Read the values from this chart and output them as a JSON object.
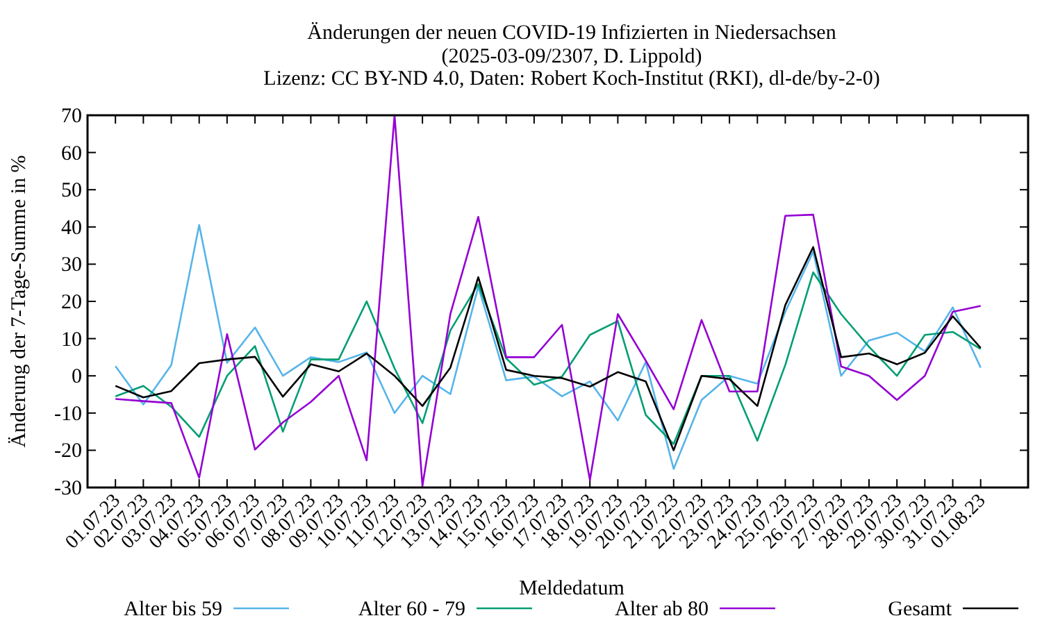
{
  "chart_data": {
    "type": "line",
    "title": "Änderungen der neuen COVID-19 Infizierten in Niedersachsen",
    "subtitle": "(2025-03-09/2307, D. Lippold)\nLizenz: CC BY-ND 4.0, Daten: Robert Koch-Institut (RKI), dl-de/by-2-0)",
    "xlabel": "Meldedatum",
    "ylabel": "Änderung der 7-Tage-Summe in %",
    "categories": [
      "01.07.23",
      "02.07.23",
      "03.07.23",
      "04.07.23",
      "05.07.23",
      "06.07.23",
      "07.07.23",
      "08.07.23",
      "09.07.23",
      "10.07.23",
      "11.07.23",
      "12.07.23",
      "13.07.23",
      "14.07.23",
      "15.07.23",
      "16.07.23",
      "17.07.23",
      "18.07.23",
      "19.07.23",
      "20.07.23",
      "21.07.23",
      "22.07.23",
      "23.07.23",
      "24.07.23",
      "25.07.23",
      "26.07.23",
      "27.07.23",
      "28.07.23",
      "29.07.23",
      "30.07.23",
      "31.07.23",
      "01.08.23"
    ],
    "series": [
      {
        "name": "Alter bis 59",
        "color": "#56b4e9",
        "values": [
          2.6,
          -7.7,
          2.9,
          40.5,
          3.5,
          13,
          0,
          5,
          3.7,
          6.3,
          -10,
          0,
          -4.9,
          24,
          -1.2,
          -0.2,
          -5.5,
          -1.5,
          -12,
          3.7,
          -25,
          -6.5,
          0,
          -2.1,
          17.2,
          33.4,
          0,
          9.5,
          11.6,
          6.6,
          18.4,
          2.2
        ]
      },
      {
        "name": "Alter 60 - 79",
        "color": "#009e73",
        "values": [
          -5.5,
          -2.7,
          -8.3,
          -16.4,
          0,
          8,
          -15,
          4.4,
          4.4,
          20,
          2,
          -12.7,
          12.2,
          24.7,
          4.7,
          -2.4,
          -0.2,
          11,
          14.7,
          -10.5,
          -18.3,
          0,
          0,
          -17.4,
          2.9,
          27.8,
          16.6,
          7.8,
          0,
          11,
          11.8,
          7.2
        ]
      },
      {
        "name": "Alter ab 80",
        "color": "#9400d3",
        "values": [
          -6.2,
          -6.8,
          -7.3,
          -27.4,
          11.2,
          -19.8,
          -12.5,
          -7,
          0,
          -22.7,
          70,
          -29.5,
          16.6,
          42.7,
          5,
          5,
          13.7,
          -28,
          16.6,
          4.1,
          -9,
          15,
          -4.2,
          -4.2,
          43,
          43.3,
          2.5,
          0,
          -6.5,
          0,
          17.2,
          18.8
        ]
      },
      {
        "name": "Gesamt",
        "color": "#000000",
        "values": [
          -2.7,
          -5.8,
          -4.1,
          3.4,
          4.4,
          5.1,
          -5.6,
          3.1,
          1.2,
          6,
          0,
          -8.1,
          2.2,
          26.5,
          1.6,
          0,
          -0.6,
          -2.9,
          1,
          -1.5,
          -20,
          0,
          -0.9,
          -8.1,
          19,
          34.6,
          5,
          6,
          3.1,
          6.2,
          16,
          7.5
        ]
      }
    ],
    "ylim": [
      -30,
      70
    ],
    "yticks": [
      -30,
      -20,
      -10,
      0,
      10,
      20,
      30,
      40,
      50,
      60,
      70
    ],
    "legend": "bottom",
    "marker": "none",
    "line_style": "solid"
  }
}
